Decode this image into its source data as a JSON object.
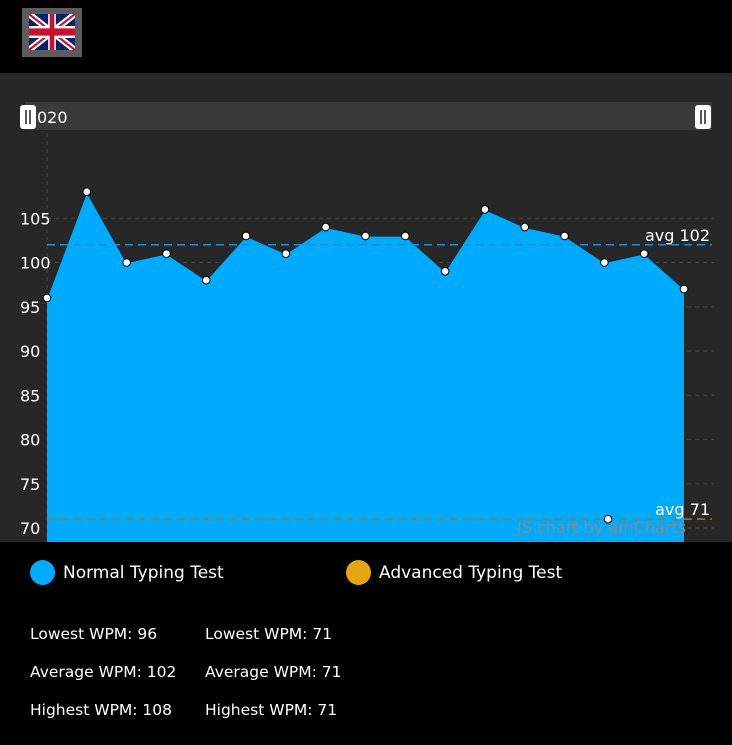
{
  "header": {
    "language_flag_icon": "uk-flag-icon"
  },
  "scrollbar": {
    "label": "020"
  },
  "chart_data": {
    "type": "area",
    "ylim": [
      70,
      110
    ],
    "yticks": [
      70,
      75,
      80,
      85,
      90,
      95,
      100,
      105
    ],
    "series": [
      {
        "name": "Normal Typing Test",
        "color": "#00aaff",
        "values": [
          96,
          108,
          100,
          101,
          98,
          103,
          101,
          104,
          103,
          103,
          99,
          106,
          104,
          103,
          100,
          101,
          97
        ]
      },
      {
        "name": "Advanced Typing Test",
        "color": "#e6a512",
        "values": [
          71
        ]
      }
    ],
    "guides": [
      {
        "value": 102,
        "label": "avg 102",
        "color": "#1e90d8"
      },
      {
        "value": 71,
        "label": "avg 71",
        "color": "#9a7a2a"
      }
    ],
    "watermark": "JS chart by amCharts"
  },
  "legend": [
    {
      "label": "Normal Typing Test",
      "color": "#00aaff"
    },
    {
      "label": "Advanced Typing Test",
      "color": "#e6a512"
    }
  ],
  "stats": {
    "normal": {
      "lowest": "Lowest WPM: 96",
      "average": "Average WPM: 102",
      "highest": "Highest WPM: 108"
    },
    "advanced": {
      "lowest": "Lowest WPM: 71",
      "average": "Average WPM: 71",
      "highest": "Highest WPM: 71"
    }
  }
}
